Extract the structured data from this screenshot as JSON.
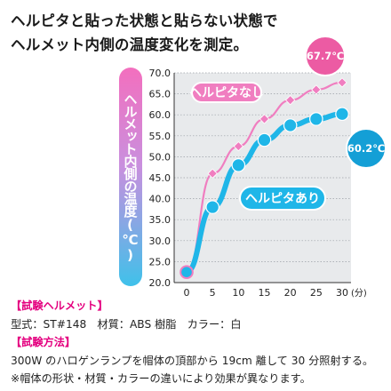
{
  "heading": {
    "line1": "ヘルピタと貼った状態と貼らない状態で",
    "line2": "ヘルメット内側の温度変化を測定。"
  },
  "chart_data": {
    "type": "line",
    "ylabel": "ヘルメット内側の温度(℃)",
    "xunit": "(分)",
    "x": [
      0,
      5,
      10,
      15,
      20,
      25,
      30
    ],
    "xticks": [
      "0",
      "5",
      "10",
      "15",
      "20",
      "25",
      "30"
    ],
    "yticks": [
      "20.0",
      "25.0",
      "30.0",
      "35.0",
      "40.0",
      "45.0",
      "50.0",
      "55.0",
      "60.0",
      "65.0",
      "70.0"
    ],
    "ylim": [
      20,
      70
    ],
    "xlim": [
      0,
      30
    ],
    "grid": true,
    "series": [
      {
        "name": "ヘルピタなし",
        "color": "#f07ec0",
        "values": [
          22.5,
          46.0,
          52.5,
          59.0,
          63.5,
          66.0,
          67.7
        ],
        "end_label": "67.7℃"
      },
      {
        "name": "ヘルピタあり",
        "color": "#1fb6e8",
        "values": [
          22.5,
          38.0,
          48.0,
          54.0,
          57.5,
          59.0,
          60.2
        ],
        "end_label": "60.2℃"
      }
    ]
  },
  "info": {
    "section1_title": "【試験ヘルメット】",
    "section1_body": "型式：ST#148　材質：ABS 樹脂　カラー：白",
    "section2_title": "【試験方法】",
    "section2_body": "300W のハロゲンランプを帽体の頂部から 19cm 離して 30 分照射する。",
    "note": "※帽体の形状・材質・カラーの違いにより効果が異なります。"
  },
  "colors": {
    "pink": "#f07ec0",
    "blue": "#1fb6e8",
    "magenta": "#e4007f",
    "plot_bg": "#e8eaec"
  }
}
